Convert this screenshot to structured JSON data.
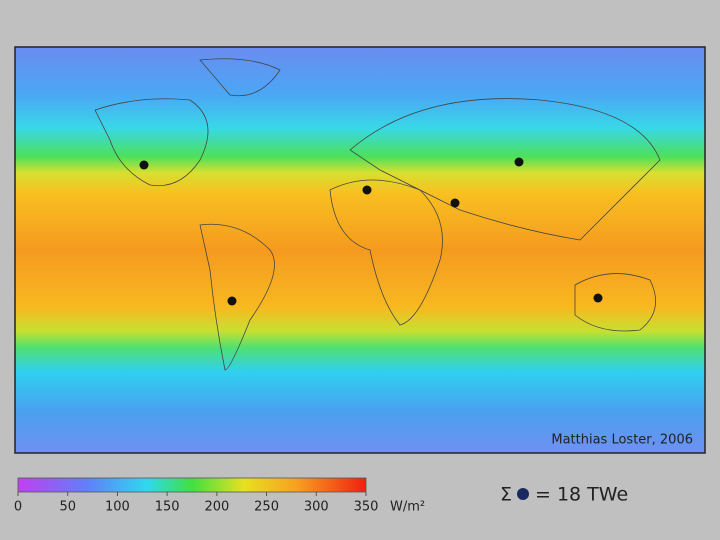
{
  "map": {
    "credit": "Matthias Loster, 2006"
  },
  "colorbar": {
    "ticks": [
      0,
      50,
      100,
      150,
      200,
      250,
      300,
      350
    ],
    "unit": "W/m²"
  },
  "legend": {
    "symbol": "Σ",
    "text": "= 18 TWe"
  }
}
